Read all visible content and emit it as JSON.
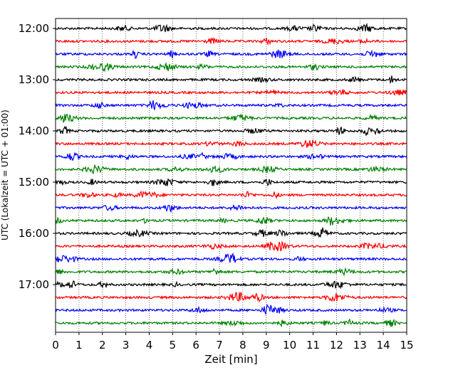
{
  "chart_data": {
    "type": "line",
    "title": "",
    "xlabel": "Zeit  [min]",
    "ylabel": "UTC (Lokalzeit = UTC + 01:00)",
    "xlim": [
      0,
      15
    ],
    "xticks": [
      0,
      1,
      2,
      3,
      4,
      5,
      6,
      7,
      8,
      9,
      10,
      11,
      12,
      13,
      14,
      15
    ],
    "xtick_labels": [
      "0",
      "1",
      "2",
      "3",
      "4",
      "5",
      "6",
      "7",
      "8",
      "9",
      "10",
      "11",
      "12",
      "13",
      "14",
      "15"
    ],
    "y_ticks": [
      {
        "label": "12:00",
        "minutes_after_noon": 0
      },
      {
        "label": "13:00",
        "minutes_after_noon": 60
      },
      {
        "label": "14:00",
        "minutes_after_noon": 120
      },
      {
        "label": "15:00",
        "minutes_after_noon": 180
      },
      {
        "label": "16:00",
        "minutes_after_noon": 240
      },
      {
        "label": "17:00",
        "minutes_after_noon": 300
      }
    ],
    "grid": "vertical dotted lines at every minute",
    "trace_interval_minutes": 15,
    "trace_colors": [
      "#000000",
      "#ff0000",
      "#0000ff",
      "#008000"
    ],
    "traces": [
      {
        "start": "12:00"
      },
      {
        "start": "12:15"
      },
      {
        "start": "12:30"
      },
      {
        "start": "12:45"
      },
      {
        "start": "13:00"
      },
      {
        "start": "13:15"
      },
      {
        "start": "13:30"
      },
      {
        "start": "13:45"
      },
      {
        "start": "14:00"
      },
      {
        "start": "14:15"
      },
      {
        "start": "14:30"
      },
      {
        "start": "14:45"
      },
      {
        "start": "15:00"
      },
      {
        "start": "15:15"
      },
      {
        "start": "15:30"
      },
      {
        "start": "15:45"
      },
      {
        "start": "16:00"
      },
      {
        "start": "16:15"
      },
      {
        "start": "16:30"
      },
      {
        "start": "16:45"
      },
      {
        "start": "17:00"
      },
      {
        "start": "17:15"
      },
      {
        "start": "17:30"
      },
      {
        "start": "17:45"
      }
    ]
  }
}
